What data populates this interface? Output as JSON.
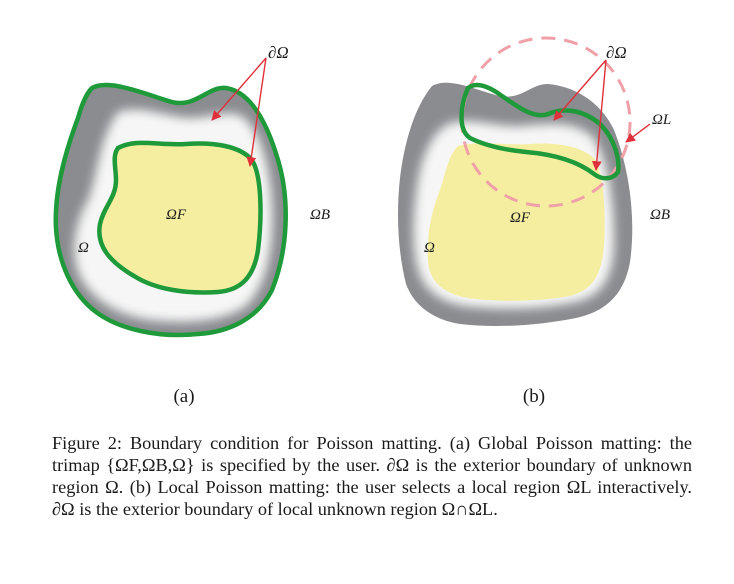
{
  "panel_a": {
    "label_boundary": "∂Ω",
    "label_foreground": "ΩF",
    "label_background": "ΩB",
    "label_unknown": "Ω",
    "sublabel": "(a)"
  },
  "panel_b": {
    "label_boundary": "∂Ω",
    "label_local": "ΩL",
    "label_foreground": "ΩF",
    "label_background": "ΩB",
    "label_unknown": "Ω",
    "sublabel": "(b)"
  },
  "caption": {
    "heading": "Figure 2:",
    "text": "Boundary condition for Poisson matting. (a) Global Poisson matting: the trimap {ΩF,ΩB,Ω} is specified by the user. ∂Ω is the exterior boundary of unknown region Ω. (b) Local Poisson matting: the user selects a local region ΩL interactively. ∂Ω is the exterior boundary of local unknown region Ω∩ΩL."
  },
  "colors": {
    "outer_gray": "#8a8c90",
    "halo_white": "#f4f4f4",
    "foreground_yellow": "#f5eea0",
    "boundary_green": "#1f9a3a",
    "arrow_red": "#e0303a",
    "local_dashed": "#f0a0a8"
  }
}
